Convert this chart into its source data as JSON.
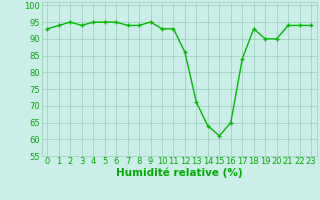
{
  "x": [
    0,
    1,
    2,
    3,
    4,
    5,
    6,
    7,
    8,
    9,
    10,
    11,
    12,
    13,
    14,
    15,
    16,
    17,
    18,
    19,
    20,
    21,
    22,
    23
  ],
  "y": [
    93,
    94,
    95,
    94,
    95,
    95,
    95,
    94,
    94,
    95,
    93,
    93,
    86,
    71,
    64,
    61,
    65,
    84,
    93,
    90,
    90,
    94,
    94,
    94
  ],
  "xlabel": "Humidité relative (%)",
  "ylim": [
    55,
    101
  ],
  "xlim": [
    -0.5,
    23.5
  ],
  "yticks": [
    55,
    60,
    65,
    70,
    75,
    80,
    85,
    90,
    95,
    100
  ],
  "xticks": [
    0,
    1,
    2,
    3,
    4,
    5,
    6,
    7,
    8,
    9,
    10,
    11,
    12,
    13,
    14,
    15,
    16,
    17,
    18,
    19,
    20,
    21,
    22,
    23
  ],
  "line_color": "#00bb00",
  "marker_color": "#00bb00",
  "bg_color": "#cceee8",
  "grid_color": "#99ccbb",
  "xlabel_color": "#00aa00",
  "tick_color": "#00aa00",
  "font_size_label": 7.5,
  "font_size_tick": 6.0,
  "line_width": 1.0,
  "marker_size": 2.5
}
